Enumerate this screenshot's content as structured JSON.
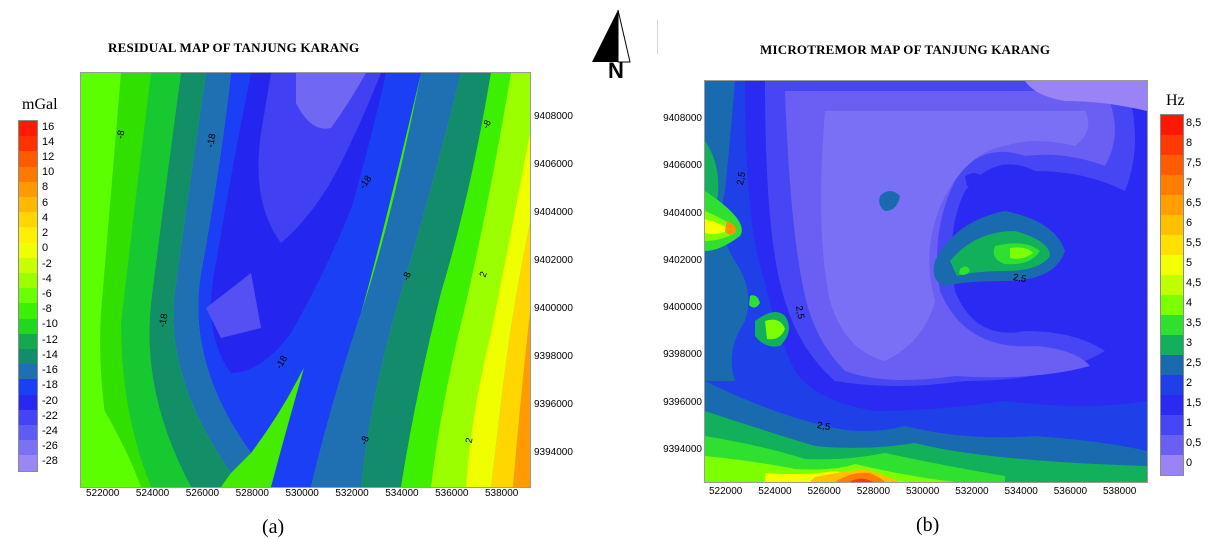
{
  "left_map": {
    "title": "RESIDUAL MAP OF TANJUNG KARANG",
    "unit": "mGal",
    "caption": "(a)",
    "legend_values": [
      "16",
      "14",
      "12",
      "10",
      "8",
      "6",
      "4",
      "2",
      "0",
      "-2",
      "-4",
      "-6",
      "-8",
      "-10",
      "-12",
      "-14",
      "-16",
      "-18",
      "-20",
      "-22",
      "-24",
      "-26",
      "-28"
    ],
    "legend_colors": [
      "#ff1a00",
      "#ff3300",
      "#ff5a00",
      "#ff7800",
      "#ff9a00",
      "#ffb800",
      "#ffd600",
      "#ffef00",
      "#f0ff00",
      "#c8ff00",
      "#9cff00",
      "#6cff00",
      "#3cf000",
      "#20d820",
      "#15a850",
      "#128c6a",
      "#1f6fb3",
      "#1b3ff5",
      "#2828f2",
      "#4444f5",
      "#5e5cf3",
      "#7a72f3",
      "#9a86f5"
    ],
    "x_ticks": [
      "522000",
      "524000",
      "526000",
      "528000",
      "530000",
      "532000",
      "534000",
      "536000",
      "538000"
    ],
    "y_ticks": [
      "9408000",
      "9406000",
      "9404000",
      "9402000",
      "9400000",
      "9398000",
      "9396000",
      "9394000"
    ],
    "contour_labels": [
      "-8",
      "-18",
      "-18",
      "-8",
      "-8",
      "2",
      "-18",
      "-18",
      "-8",
      "2"
    ]
  },
  "north_arrow": {
    "label": "N"
  },
  "right_map": {
    "title": "MICROTREMOR MAP OF TANJUNG KARANG",
    "unit": "Hz",
    "caption": "(b)",
    "legend_values": [
      "8,5",
      "8",
      "7,5",
      "7",
      "6,5",
      "6",
      "5,5",
      "5",
      "4,5",
      "4",
      "3,5",
      "3",
      "2,5",
      "2",
      "1,5",
      "1",
      "0,5",
      "0"
    ],
    "legend_colors": [
      "#ff1800",
      "#ff3a00",
      "#ff5c00",
      "#ff7e00",
      "#ffa000",
      "#ffc000",
      "#ffe000",
      "#f4ff00",
      "#bfff00",
      "#7cff00",
      "#30e030",
      "#12b05a",
      "#1a6ab0",
      "#1f3fe8",
      "#2a2af2",
      "#4646f5",
      "#6a5ef3",
      "#9a84f5"
    ],
    "x_ticks": [
      "522000",
      "524000",
      "526000",
      "528000",
      "530000",
      "532000",
      "534000",
      "536000",
      "538000"
    ],
    "y_ticks": [
      "9408000",
      "9406000",
      "9404000",
      "9402000",
      "9400000",
      "9398000",
      "9396000",
      "9394000"
    ],
    "contour_labels": [
      "2,5",
      "2,5",
      "2,5",
      "2,5"
    ]
  }
}
